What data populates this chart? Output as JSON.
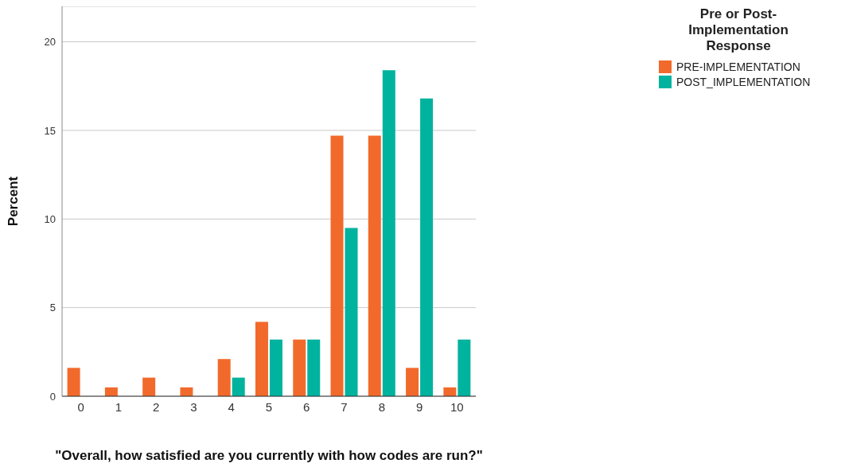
{
  "chart_data": {
    "type": "bar",
    "xlabel": "\"Overall, how satisfied are you currently with how codes are run?\"",
    "ylabel": "Percent",
    "legend_title": "Pre or Post-Implementation Response",
    "categories": [
      "0",
      "1",
      "2",
      "3",
      "4",
      "5",
      "6",
      "7",
      "8",
      "9",
      "10"
    ],
    "series": [
      {
        "name": "PRE-IMPLEMENTATION",
        "color": "#f26a2b",
        "values": [
          1.6,
          0.5,
          1.05,
          0.5,
          2.1,
          4.2,
          3.2,
          14.7,
          14.7,
          1.6,
          0.5
        ]
      },
      {
        "name": "POST_IMPLEMENTATION",
        "color": "#00b39f",
        "values": [
          null,
          null,
          null,
          null,
          1.05,
          3.2,
          3.2,
          9.5,
          18.4,
          16.8,
          3.2
        ]
      }
    ],
    "ylim": [
      0,
      22
    ],
    "yticks": [
      0,
      5,
      10,
      15,
      20
    ],
    "grid": "y",
    "legend": "top right"
  }
}
